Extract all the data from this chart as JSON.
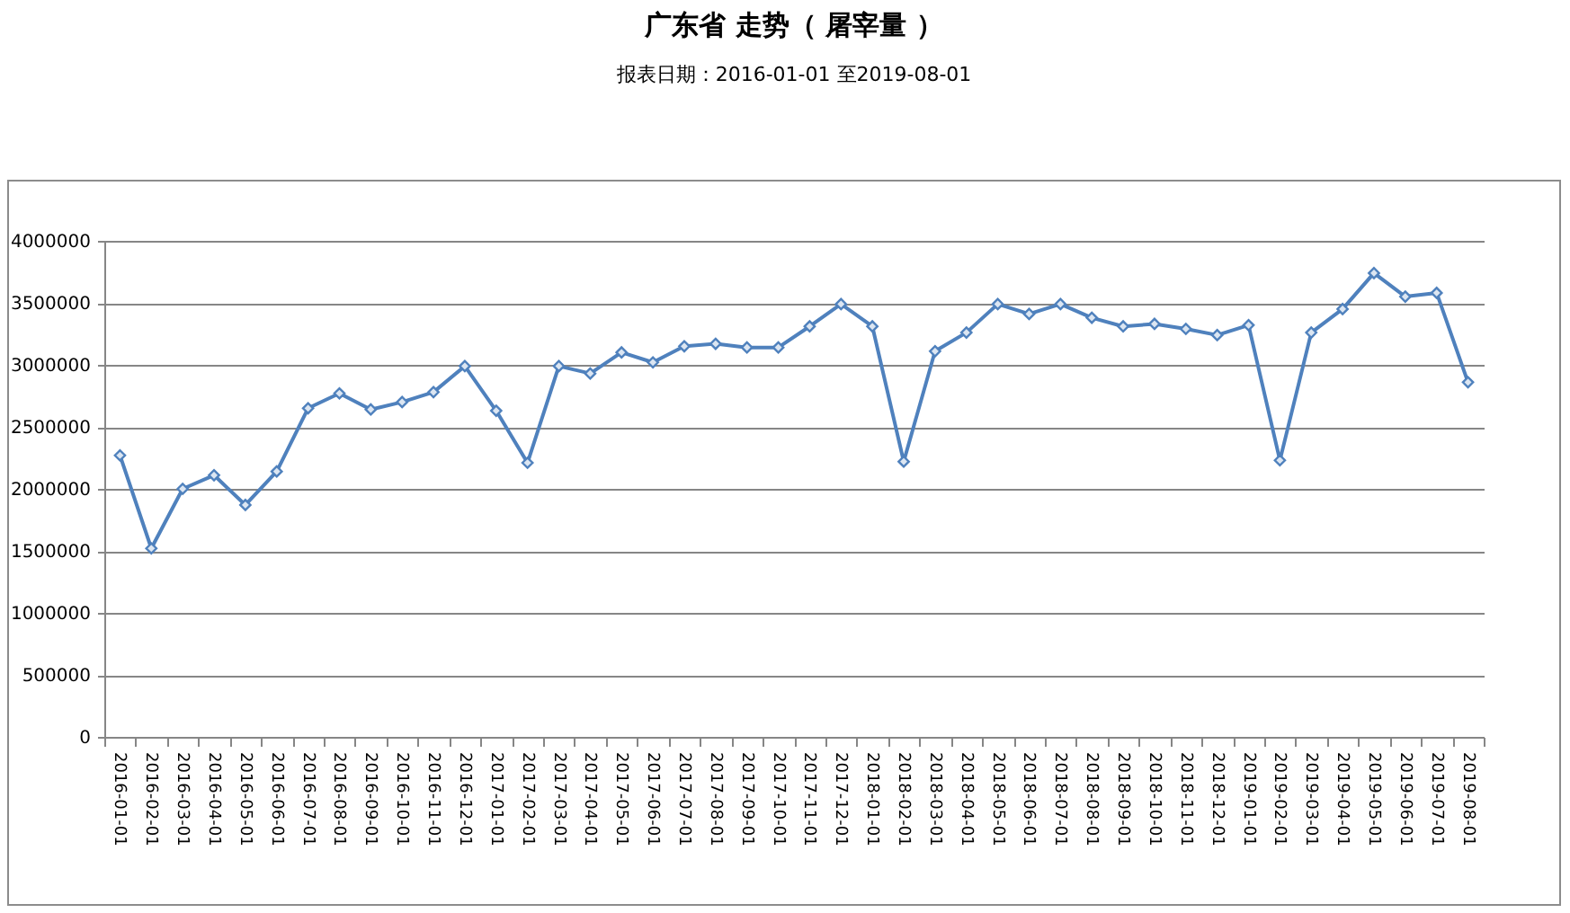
{
  "chart_data": {
    "type": "line",
    "title": "广东省 走势（ 屠宰量 ）",
    "subtitle": "报表日期：2016-01-01 至2019-08-01",
    "categories": [
      "2016-01-01",
      "2016-02-01",
      "2016-03-01",
      "2016-04-01",
      "2016-05-01",
      "2016-06-01",
      "2016-07-01",
      "2016-08-01",
      "2016-09-01",
      "2016-10-01",
      "2016-11-01",
      "2016-12-01",
      "2017-01-01",
      "2017-02-01",
      "2017-03-01",
      "2017-04-01",
      "2017-05-01",
      "2017-06-01",
      "2017-07-01",
      "2017-08-01",
      "2017-09-01",
      "2017-10-01",
      "2017-11-01",
      "2017-12-01",
      "2018-01-01",
      "2018-02-01",
      "2018-03-01",
      "2018-04-01",
      "2018-05-01",
      "2018-06-01",
      "2018-07-01",
      "2018-08-01",
      "2018-09-01",
      "2018-10-01",
      "2018-11-01",
      "2018-12-01",
      "2019-01-01",
      "2019-02-01",
      "2019-03-01",
      "2019-04-01",
      "2019-05-01",
      "2019-06-01",
      "2019-07-01",
      "2019-08-01"
    ],
    "values": [
      2270000,
      1520000,
      2000000,
      2110000,
      1870000,
      2140000,
      2650000,
      2770000,
      2640000,
      2700000,
      2780000,
      2990000,
      2630000,
      2210000,
      2990000,
      2930000,
      3100000,
      3020000,
      3150000,
      3170000,
      3140000,
      3140000,
      3310000,
      3490000,
      3310000,
      2220000,
      3110000,
      3260000,
      3490000,
      3410000,
      3490000,
      3380000,
      3310000,
      3330000,
      3290000,
      3240000,
      3320000,
      2230000,
      3260000,
      3450000,
      3740000,
      3550000,
      3580000,
      2860000
    ],
    "color": "#4f81bd",
    "ylim": [
      0,
      4000000
    ],
    "yticks": [
      0,
      500000,
      1000000,
      1500000,
      2000000,
      2500000,
      3000000,
      3500000,
      4000000
    ],
    "grid": "y",
    "marker": "diamond",
    "line_style": "solid"
  }
}
